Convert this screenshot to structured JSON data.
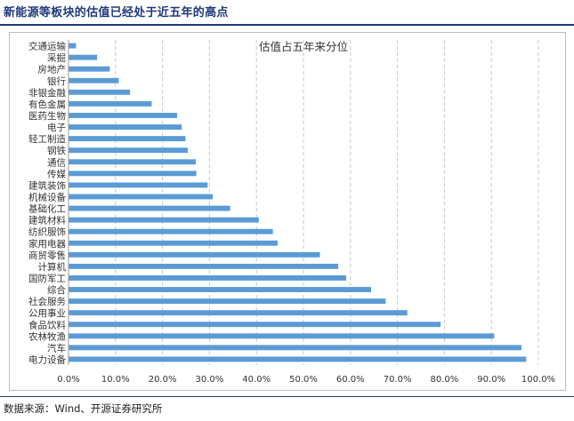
{
  "page": {
    "title": "新能源等板块的估值已经处于近五年的高点",
    "source": "数据来源：Wind、开源证券研究所"
  },
  "colors": {
    "bar": "#5b9bd5",
    "grid": "#c8c8c8",
    "axis_text": "#333333",
    "title": "#1f3a7a"
  },
  "chart_data": {
    "type": "bar",
    "orientation": "horizontal",
    "title": "估值占五年来分位",
    "categories": [
      "交通运输",
      "采掘",
      "房地产",
      "银行",
      "非银金融",
      "有色金属",
      "医药生物",
      "电子",
      "轻工制造",
      "钢铁",
      "通信",
      "传媒",
      "建筑装饰",
      "机械设备",
      "基础化工",
      "建筑材料",
      "纺织服饰",
      "家用电器",
      "商贸零售",
      "计算机",
      "国防军工",
      "综合",
      "社会服务",
      "公用事业",
      "食品饮料",
      "农林牧渔",
      "汽车",
      "电力设备"
    ],
    "values": [
      1.5,
      6.0,
      8.7,
      10.6,
      13.0,
      17.6,
      23.0,
      24.0,
      24.8,
      25.3,
      27.0,
      27.1,
      29.5,
      30.6,
      34.3,
      40.4,
      43.4,
      44.4,
      53.4,
      57.3,
      59.0,
      64.3,
      67.4,
      72.0,
      79.1,
      90.5,
      96.3,
      97.3
    ],
    "xlim": [
      0,
      100
    ],
    "xticks": [
      "0.0%",
      "10.0%",
      "20.0%",
      "30.0%",
      "40.0%",
      "50.0%",
      "60.0%",
      "70.0%",
      "80.0%",
      "90.0%",
      "100.0%"
    ],
    "grid": true,
    "grid_style": "dashed-vertical",
    "legend": "none"
  }
}
